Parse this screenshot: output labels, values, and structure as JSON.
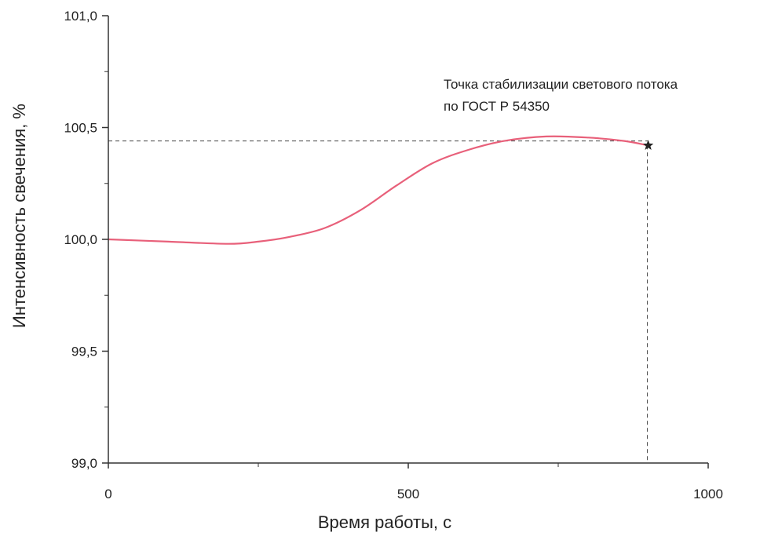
{
  "chart_data": {
    "type": "line",
    "xlabel": "Время работы, с",
    "ylabel": "Интенсивность свечения, %",
    "xlim": [
      0,
      1000
    ],
    "ylim": [
      99.0,
      101.0
    ],
    "x_ticks": [
      0,
      500,
      1000
    ],
    "x_tick_labels": [
      "0",
      "500",
      "1000"
    ],
    "y_ticks": [
      99.0,
      99.5,
      100.0,
      100.5,
      101.0
    ],
    "y_tick_labels": [
      "99,0",
      "99,5",
      "100,0",
      "100,5",
      "101,0"
    ],
    "grid": false,
    "series": [
      {
        "color": "#e8607a",
        "points": [
          [
            0,
            100.0
          ],
          [
            100,
            99.99
          ],
          [
            200,
            99.98
          ],
          [
            250,
            99.99
          ],
          [
            300,
            100.01
          ],
          [
            360,
            100.05
          ],
          [
            420,
            100.13
          ],
          [
            480,
            100.24
          ],
          [
            540,
            100.34
          ],
          [
            600,
            100.4
          ],
          [
            660,
            100.44
          ],
          [
            730,
            100.46
          ],
          [
            800,
            100.455
          ],
          [
            860,
            100.44
          ],
          [
            900,
            100.42
          ]
        ]
      }
    ],
    "marker": {
      "x": 900,
      "y": 100.42,
      "shape": "star",
      "color": "#222222"
    },
    "reference_line_y": 100.44,
    "annotation": {
      "lines": [
        "Точка стабилизации светового потока",
        " по ГОСТ Р 54350"
      ]
    }
  }
}
